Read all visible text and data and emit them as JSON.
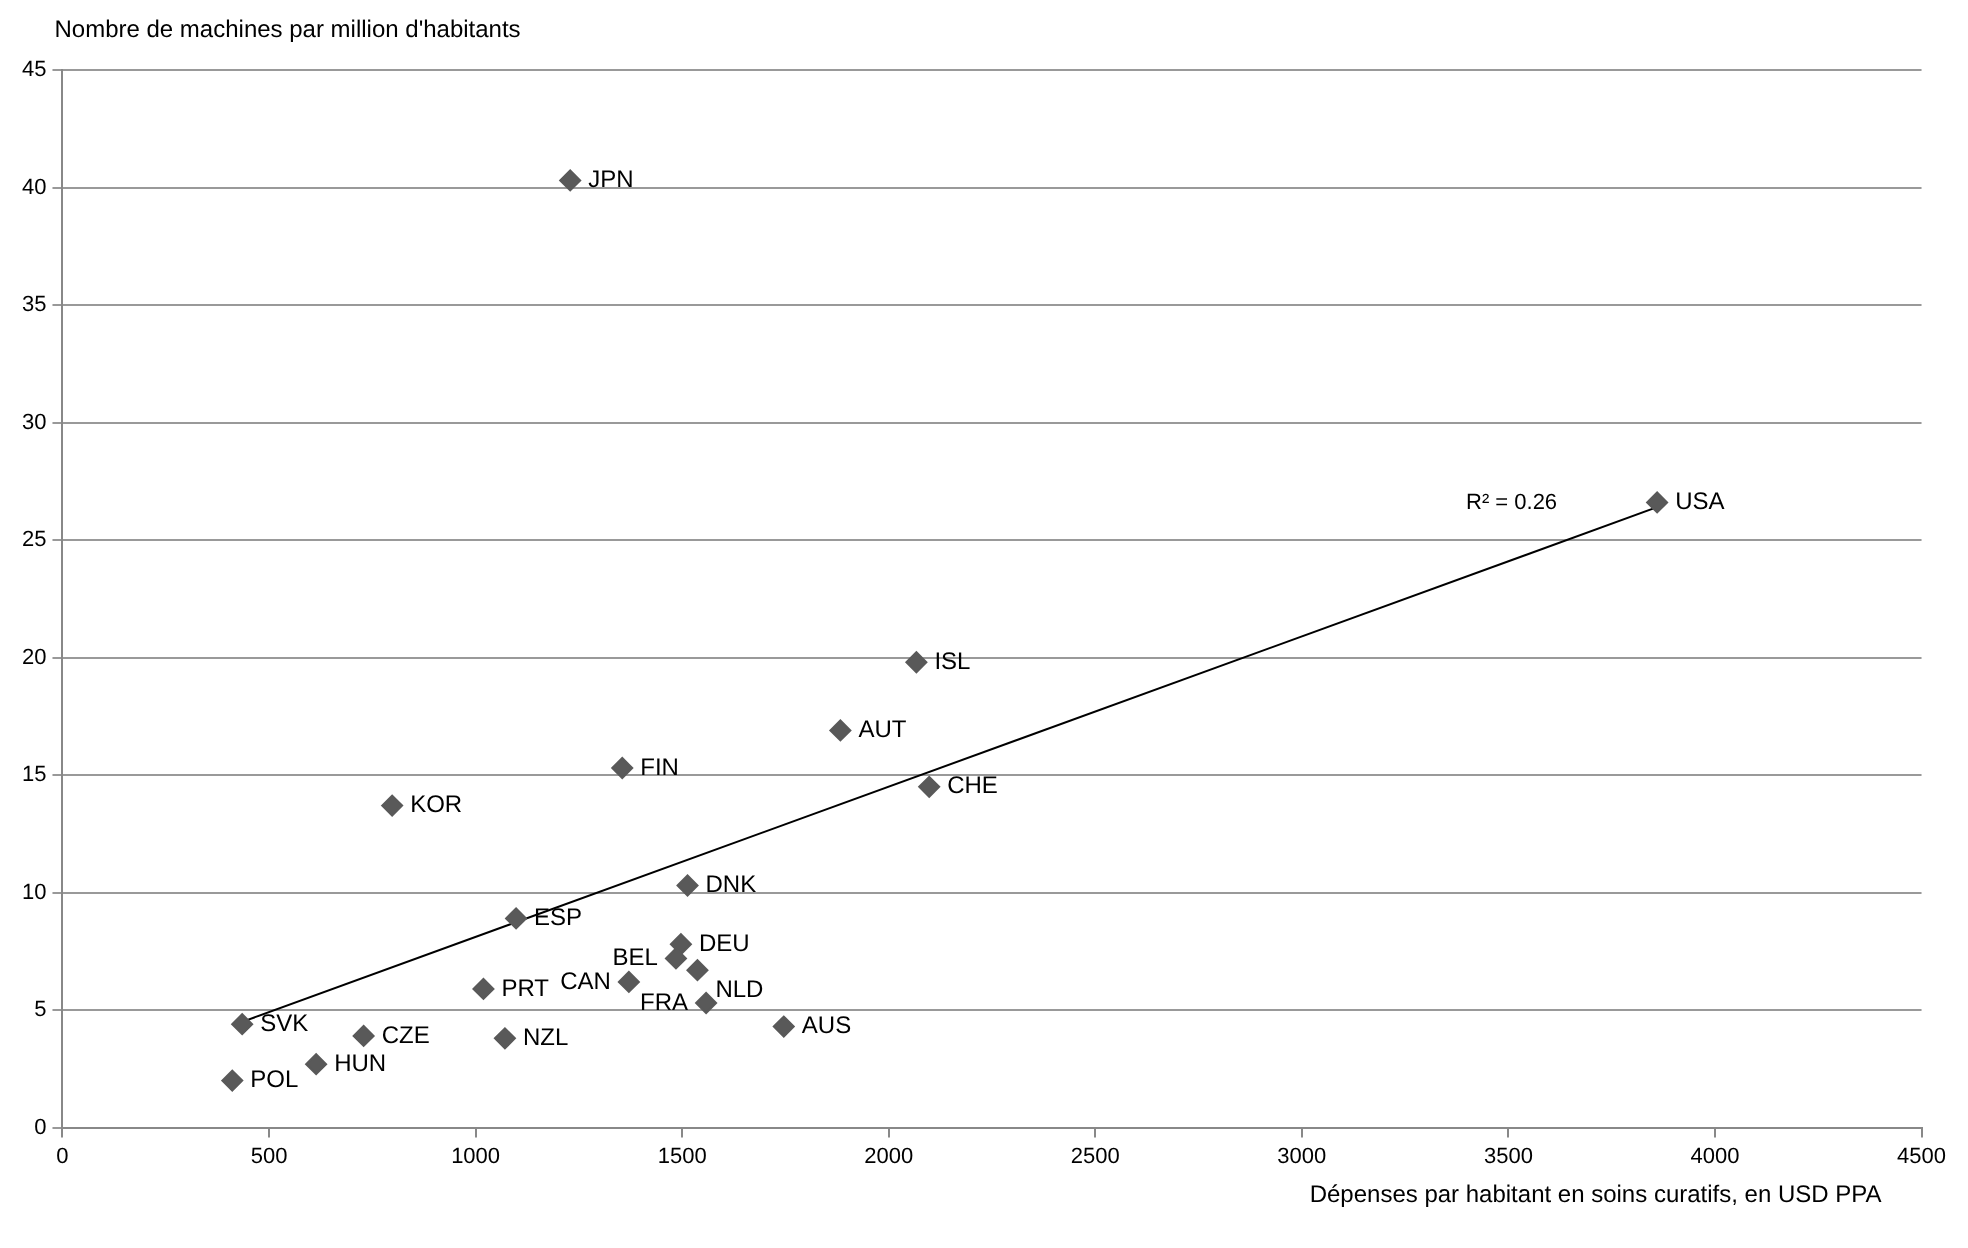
{
  "chart_data": {
    "type": "scatter",
    "xlabel": "Dépenses par habitant en soins curatifs, en USD PPA",
    "ylabel": "Nombre de machines par million d'habitants",
    "xlim": [
      0,
      4500
    ],
    "xticks": [
      0,
      500,
      1000,
      1500,
      2000,
      2500,
      3000,
      3500,
      4000,
      4500
    ],
    "ylim": [
      0,
      45
    ],
    "yticks": [
      0,
      5,
      10,
      15,
      20,
      25,
      30,
      35,
      40,
      45
    ],
    "grid": "y",
    "marker": "diamond",
    "legend": false,
    "series": [
      {
        "color": "#595959",
        "x": [
          1229,
          3860,
          2067,
          1883,
          1355,
          798,
          2098,
          1513,
          1098,
          1497,
          1485,
          1537,
          1371,
          1019,
          1558,
          1746,
          435,
          729,
          1071,
          614,
          411
        ],
        "values": [
          40.3,
          26.6,
          19.8,
          16.9,
          15.3,
          13.7,
          14.5,
          10.3,
          8.9,
          7.8,
          7.2,
          6.7,
          6.2,
          5.9,
          5.3,
          4.3,
          4.4,
          3.9,
          3.8,
          2.7,
          2.0
        ]
      },
      {
        "type": "line",
        "marker": "none",
        "color": "#000000",
        "x": [
          435,
          3860
        ],
        "values": [
          4.5,
          26.4
        ]
      }
    ],
    "annotations": [
      {
        "text": "JPN",
        "x": 1229,
        "y": 40.3
      },
      {
        "text": "USA",
        "x": 3860,
        "y": 26.6
      },
      {
        "text": "ISL",
        "x": 2067,
        "y": 19.8
      },
      {
        "text": "AUT",
        "x": 1883,
        "y": 16.9
      },
      {
        "text": "FIN",
        "x": 1355,
        "y": 15.3
      },
      {
        "text": "KOR",
        "x": 798,
        "y": 13.7
      },
      {
        "text": "CHE",
        "x": 2098,
        "y": 14.5
      },
      {
        "text": "DNK",
        "x": 1513,
        "y": 10.3
      },
      {
        "text": "ESP",
        "x": 1098,
        "y": 8.9
      },
      {
        "text": "DEU",
        "x": 1497,
        "y": 7.8
      },
      {
        "text": "BEL",
        "x": 1485,
        "y": 7.2
      },
      {
        "text": "NLD",
        "x": 1537,
        "y": 6.7
      },
      {
        "text": "CAN",
        "x": 1371,
        "y": 6.2
      },
      {
        "text": "PRT",
        "x": 1019,
        "y": 5.9
      },
      {
        "text": "FRA",
        "x": 1558,
        "y": 5.3
      },
      {
        "text": "AUS",
        "x": 1746,
        "y": 4.3
      },
      {
        "text": "SVK",
        "x": 435,
        "y": 4.4
      },
      {
        "text": "CZE",
        "x": 729,
        "y": 3.9
      },
      {
        "text": "NZL",
        "x": 1071,
        "y": 3.8
      },
      {
        "text": "HUN",
        "x": 614,
        "y": 2.7
      },
      {
        "text": "POL",
        "x": 411,
        "y": 2.0
      },
      "R² = 0.26"
    ]
  }
}
